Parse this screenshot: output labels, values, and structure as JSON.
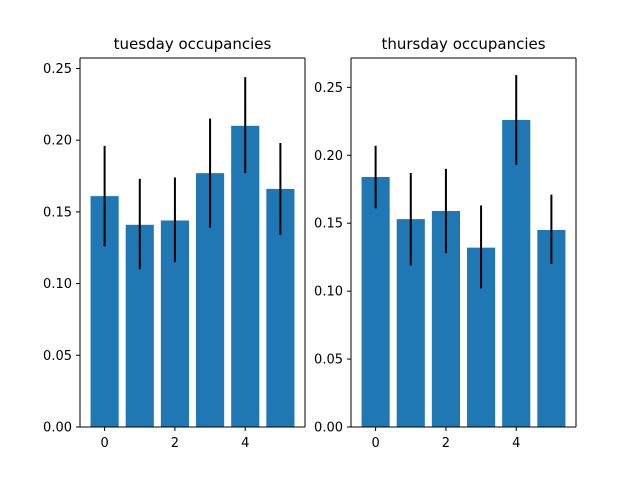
{
  "chart_data": [
    {
      "type": "bar",
      "title": "tuesday occupancies",
      "xlabel": "",
      "ylabel": "",
      "x": [
        0,
        1,
        2,
        3,
        4,
        5
      ],
      "values": [
        0.161,
        0.141,
        0.144,
        0.177,
        0.21,
        0.166
      ],
      "error_low": [
        0.126,
        0.11,
        0.115,
        0.139,
        0.177,
        0.134
      ],
      "error_high": [
        0.196,
        0.173,
        0.174,
        0.215,
        0.244,
        0.198
      ],
      "xticks": [
        0,
        2,
        4
      ],
      "yticks": [
        0.0,
        0.05,
        0.1,
        0.15,
        0.2,
        0.25
      ],
      "ylim": [
        0,
        0.2573
      ],
      "xlim": [
        -0.7,
        5.7
      ],
      "grid": false,
      "bar_color": "#1f77b4",
      "error_color": "#000000"
    },
    {
      "type": "bar",
      "title": "thursday occupancies",
      "xlabel": "",
      "ylabel": "",
      "x": [
        0,
        1,
        2,
        3,
        4,
        5
      ],
      "values": [
        0.184,
        0.153,
        0.159,
        0.132,
        0.226,
        0.145
      ],
      "error_low": [
        0.161,
        0.119,
        0.128,
        0.102,
        0.193,
        0.12
      ],
      "error_high": [
        0.207,
        0.187,
        0.19,
        0.163,
        0.259,
        0.171
      ],
      "xticks": [
        0,
        2,
        4
      ],
      "yticks": [
        0.0,
        0.05,
        0.1,
        0.15,
        0.2,
        0.25
      ],
      "ylim": [
        0,
        0.2716
      ],
      "xlim": [
        -0.7,
        5.7
      ],
      "grid": false,
      "bar_color": "#1f77b4",
      "error_color": "#000000"
    }
  ]
}
